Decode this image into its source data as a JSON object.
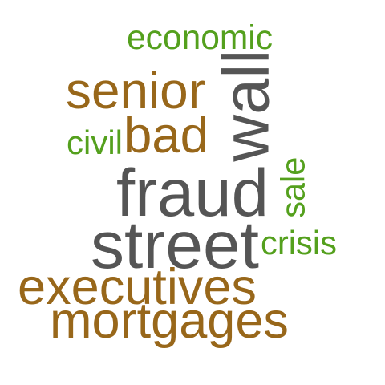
{
  "colors": {
    "gray": "#555555",
    "brown": "#98671a",
    "green": "#54a01d"
  },
  "words": [
    {
      "text": "economic",
      "color": "green"
    },
    {
      "text": "wall",
      "color": "gray"
    },
    {
      "text": "senior",
      "color": "brown"
    },
    {
      "text": "civil",
      "color": "green"
    },
    {
      "text": "bad",
      "color": "brown"
    },
    {
      "text": "sale",
      "color": "green"
    },
    {
      "text": "fraud",
      "color": "gray"
    },
    {
      "text": "street",
      "color": "gray"
    },
    {
      "text": "crisis",
      "color": "green"
    },
    {
      "text": "executives",
      "color": "brown"
    },
    {
      "text": "mortgages",
      "color": "brown"
    }
  ]
}
